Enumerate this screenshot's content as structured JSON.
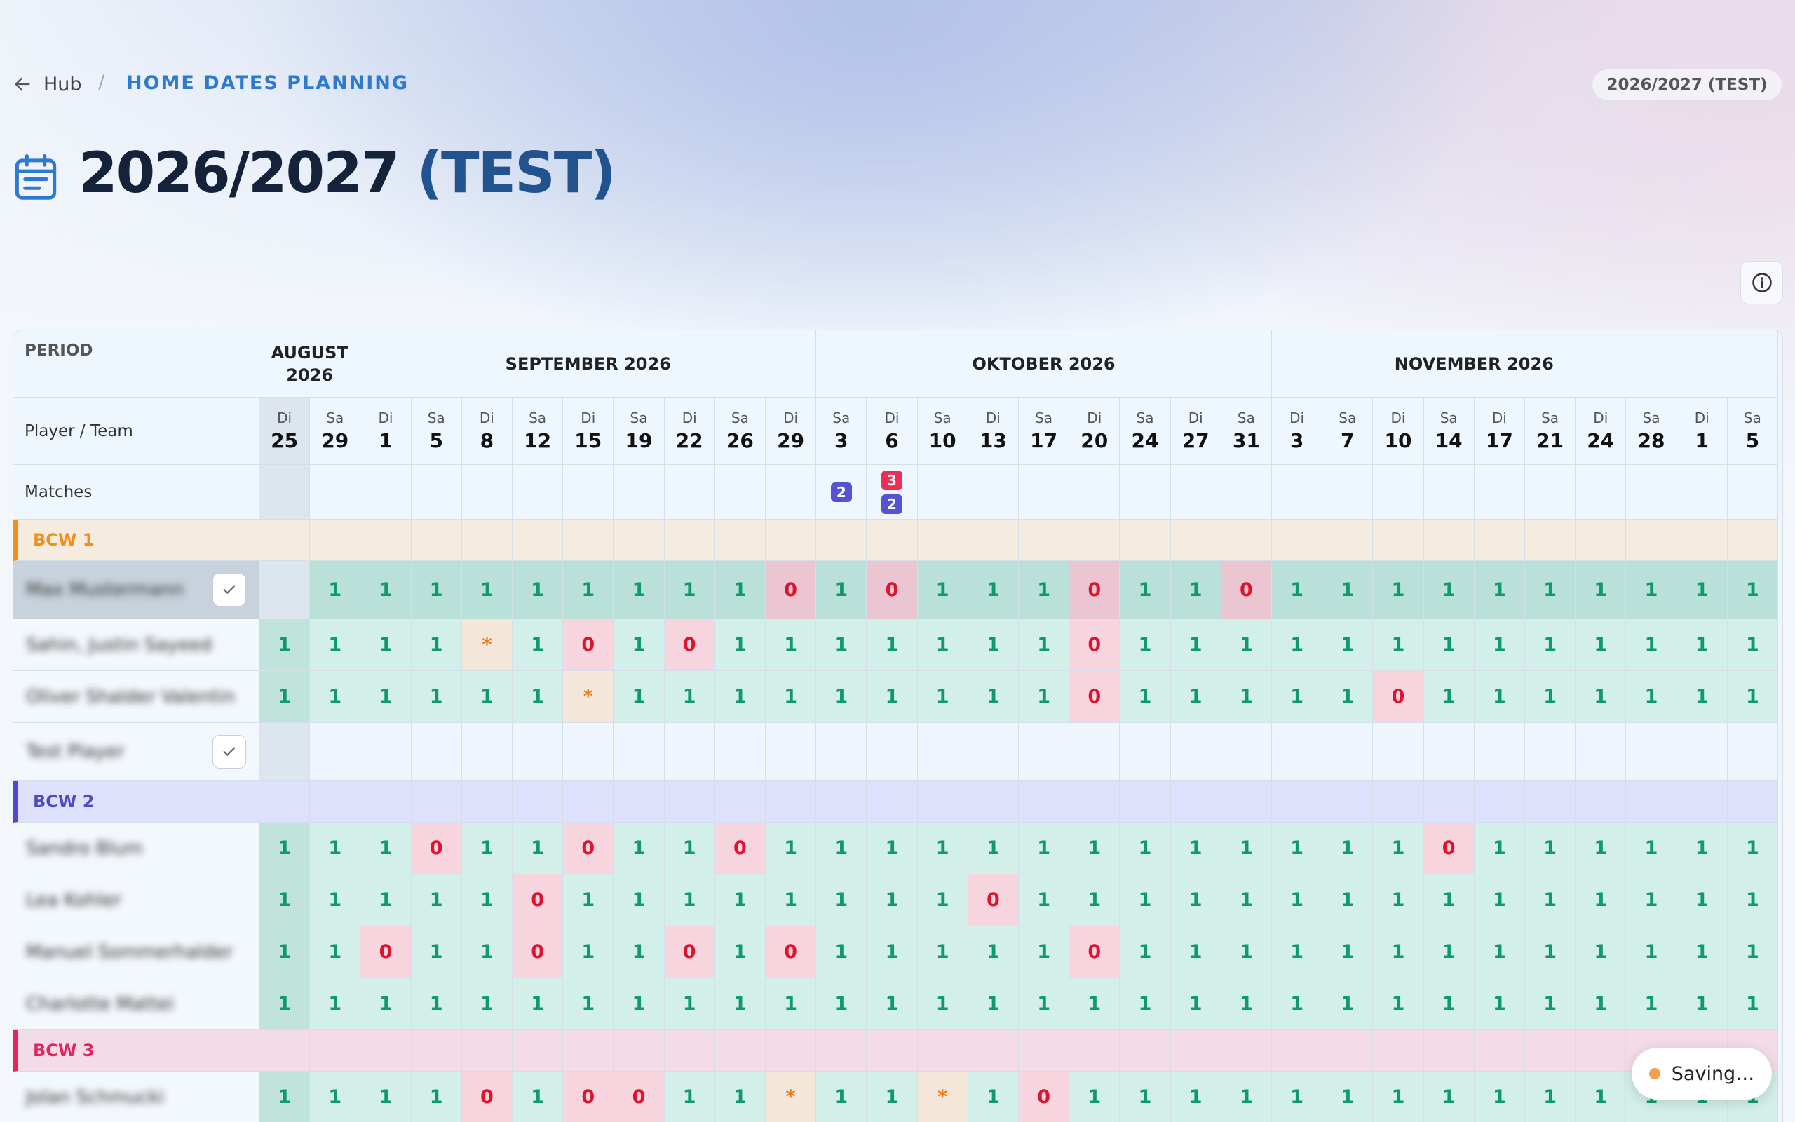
{
  "header": {
    "back": "Hub",
    "separator": "/",
    "breadcrumb": "HOME DATES PLANNING",
    "season_badge": "2026/2027 (TEST)",
    "title": "2026/2027",
    "title_suffix": "(TEST)"
  },
  "table": {
    "period_label": "PERIOD",
    "player_team_label": "Player / Team",
    "matches_label": "Matches",
    "months": [
      {
        "label": "AUGUST 2026",
        "span": 2
      },
      {
        "label": "SEPTEMBER 2026",
        "span": 9
      },
      {
        "label": "OKTOBER 2026",
        "span": 9
      },
      {
        "label": "NOVEMBER 2026",
        "span": 8
      },
      {
        "span": 2
      }
    ],
    "days": [
      {
        "weekday": "Di",
        "day": 25
      },
      {
        "weekday": "Sa",
        "day": 29
      },
      {
        "weekday": "Di",
        "day": 1
      },
      {
        "weekday": "Sa",
        "day": 5
      },
      {
        "weekday": "Di",
        "day": 8
      },
      {
        "weekday": "Sa",
        "day": 12
      },
      {
        "weekday": "Di",
        "day": 15
      },
      {
        "weekday": "Sa",
        "day": 19
      },
      {
        "weekday": "Di",
        "day": 22
      },
      {
        "weekday": "Sa",
        "day": 26
      },
      {
        "weekday": "Di",
        "day": 29
      },
      {
        "weekday": "Sa",
        "day": 3
      },
      {
        "weekday": "Di",
        "day": 6
      },
      {
        "weekday": "Sa",
        "day": 10
      },
      {
        "weekday": "Di",
        "day": 13
      },
      {
        "weekday": "Sa",
        "day": 17
      },
      {
        "weekday": "Di",
        "day": 20
      },
      {
        "weekday": "Sa",
        "day": 24
      },
      {
        "weekday": "Di",
        "day": 27
      },
      {
        "weekday": "Sa",
        "day": 31
      },
      {
        "weekday": "Di",
        "day": 3
      },
      {
        "weekday": "Sa",
        "day": 7
      },
      {
        "weekday": "Di",
        "day": 10
      },
      {
        "weekday": "Sa",
        "day": 14
      },
      {
        "weekday": "Di",
        "day": 17
      },
      {
        "weekday": "Sa",
        "day": 21
      },
      {
        "weekday": "Di",
        "day": 24
      },
      {
        "weekday": "Sa",
        "day": 28
      },
      {
        "weekday": "Di",
        "day": 1
      },
      {
        "weekday": "Sa",
        "day": 5
      }
    ],
    "matches": [
      {
        "column": 11,
        "badges": [
          {
            "value": 2,
            "color": "#5652d4"
          }
        ]
      },
      {
        "column": 12,
        "badges": [
          {
            "value": 3,
            "color": "#ee2c55"
          },
          {
            "value": 2,
            "color": "#5652d4"
          }
        ]
      }
    ],
    "teams": [
      {
        "name": "BCW 1",
        "color": "#f0901a",
        "background": "#f6ebdf",
        "players": [
          {
            "name": "Max Mustermann",
            "checked": true,
            "cells": [
              null,
              "1",
              "1",
              "1",
              "1",
              "1",
              "1",
              "1",
              "1",
              "1",
              "0",
              "1",
              "0",
              "1",
              "1",
              "1",
              "0",
              "1",
              "1",
              "0",
              "1",
              "1",
              "1",
              "1",
              "1",
              "1",
              "1",
              "1",
              "1",
              "1"
            ]
          },
          {
            "name": "Sahin, Justin Sayeed",
            "checked": false,
            "cells": [
              "1",
              "1",
              "1",
              "1",
              "*",
              "1",
              "0",
              "1",
              "0",
              "1",
              "1",
              "1",
              "1",
              "1",
              "1",
              "1",
              "0",
              "1",
              "1",
              "1",
              "1",
              "1",
              "1",
              "1",
              "1",
              "1",
              "1",
              "1",
              "1",
              "1"
            ]
          },
          {
            "name": "Oliver Shalder Valentin",
            "checked": false,
            "cells": [
              "1",
              "1",
              "1",
              "1",
              "1",
              "1",
              "*",
              "1",
              "1",
              "1",
              "1",
              "1",
              "1",
              "1",
              "1",
              "1",
              "0",
              "1",
              "1",
              "1",
              "1",
              "1",
              "0",
              "1",
              "1",
              "1",
              "1",
              "1",
              "1",
              "1"
            ]
          },
          {
            "name": "Test Player",
            "checked": true,
            "cells": [
              null,
              null,
              null,
              null,
              null,
              null,
              null,
              null,
              null,
              null,
              null,
              null,
              null,
              null,
              null,
              null,
              null,
              null,
              null,
              null,
              null,
              null,
              null,
              null,
              null,
              null,
              null,
              null,
              null,
              null
            ]
          }
        ]
      },
      {
        "name": "BCW 2",
        "color": "#4d49cc",
        "background": "#dde1fb",
        "players": [
          {
            "name": "Sandro Blum",
            "checked": false,
            "cells": [
              "1",
              "1",
              "1",
              "0",
              "1",
              "1",
              "0",
              "1",
              "1",
              "0",
              "1",
              "1",
              "1",
              "1",
              "1",
              "1",
              "1",
              "1",
              "1",
              "1",
              "1",
              "1",
              "1",
              "0",
              "1",
              "1",
              "1",
              "1",
              "1",
              "1"
            ]
          },
          {
            "name": "Lea Kohler",
            "checked": false,
            "cells": [
              "1",
              "1",
              "1",
              "1",
              "1",
              "0",
              "1",
              "1",
              "1",
              "1",
              "1",
              "1",
              "1",
              "1",
              "0",
              "1",
              "1",
              "1",
              "1",
              "1",
              "1",
              "1",
              "1",
              "1",
              "1",
              "1",
              "1",
              "1",
              "1",
              "1"
            ]
          },
          {
            "name": "Manuel Sommerhalder",
            "checked": false,
            "cells": [
              "1",
              "1",
              "0",
              "1",
              "1",
              "0",
              "1",
              "1",
              "0",
              "1",
              "0",
              "1",
              "1",
              "1",
              "1",
              "1",
              "0",
              "1",
              "1",
              "1",
              "1",
              "1",
              "1",
              "1",
              "1",
              "1",
              "1",
              "1",
              "1",
              "1"
            ]
          },
          {
            "name": "Charlotte Mattei",
            "checked": false,
            "cells": [
              "1",
              "1",
              "1",
              "1",
              "1",
              "1",
              "1",
              "1",
              "1",
              "1",
              "1",
              "1",
              "1",
              "1",
              "1",
              "1",
              "1",
              "1",
              "1",
              "1",
              "1",
              "1",
              "1",
              "1",
              "1",
              "1",
              "1",
              "1",
              "1",
              "1"
            ]
          }
        ]
      },
      {
        "name": "BCW 3",
        "color": "#e2255b",
        "background": "#f4dbe8",
        "players": [
          {
            "name": "Jolan Schmucki",
            "checked": false,
            "cells": [
              "1",
              "1",
              "1",
              "1",
              "0",
              "1",
              "0",
              "0",
              "1",
              "1",
              "*",
              "1",
              "1",
              "*",
              "1",
              "0",
              "1",
              "1",
              "1",
              "1",
              "1",
              "1",
              "1",
              "1",
              "1",
              "1",
              "1",
              "1",
              "1",
              "1"
            ]
          }
        ]
      }
    ]
  },
  "status": {
    "saving": "Saving…"
  }
}
